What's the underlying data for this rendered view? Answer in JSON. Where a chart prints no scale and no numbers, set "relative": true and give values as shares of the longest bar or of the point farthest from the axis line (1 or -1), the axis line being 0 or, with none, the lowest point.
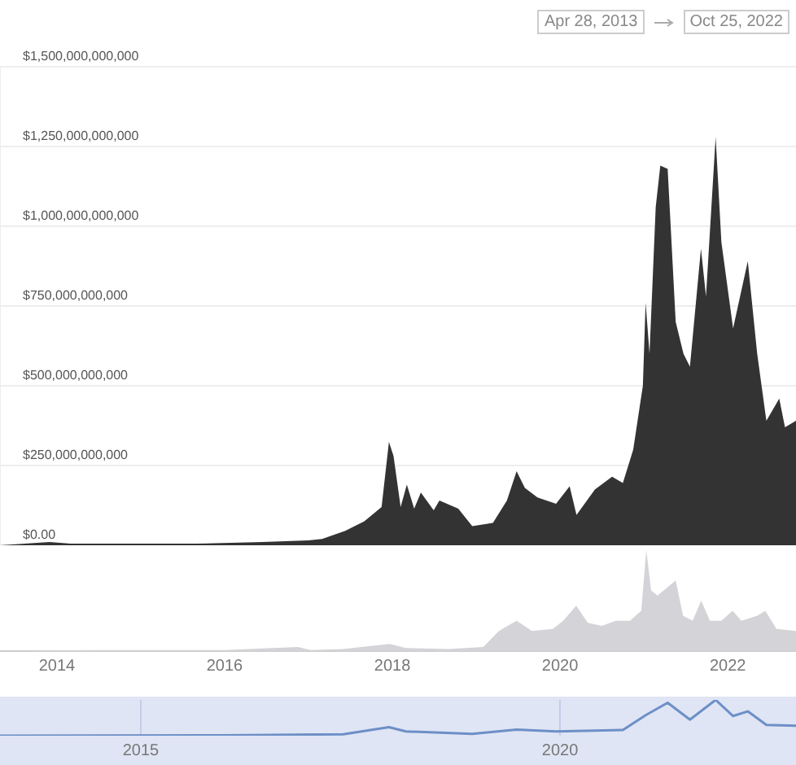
{
  "chart_data": [
    {
      "type": "area",
      "annotations": [
        "Apr 28, 2013",
        "Oct 25, 2022"
      ],
      "tick_labels": "y",
      "grid": "y",
      "legend": false,
      "xlim": [
        "2013-04-28",
        "2022-10-25"
      ],
      "ylim": [
        0,
        1500000000000
      ],
      "yticks": [
        {
          "value": 0,
          "label": "$0.00"
        },
        {
          "value": 250000000000,
          "label": "$250,000,000,000"
        },
        {
          "value": 500000000000,
          "label": "$500,000,000,000"
        },
        {
          "value": 750000000000,
          "label": "$750,000,000,000"
        },
        {
          "value": 1000000000000,
          "label": "$1,000,000,000,000"
        },
        {
          "value": 1250000000000,
          "label": "$1,250,000,000,000"
        },
        {
          "value": 1500000000000,
          "label": "$1,500,000,000,000"
        }
      ],
      "x": [
        "2013-04-28",
        "2013-11-30",
        "2014-03-01",
        "2014-09-01",
        "2015-01-15",
        "2015-09-01",
        "2016-06-15",
        "2016-12-31",
        "2017-03-01",
        "2017-06-10",
        "2017-09-01",
        "2017-11-15",
        "2017-12-17",
        "2018-01-06",
        "2018-02-06",
        "2018-03-05",
        "2018-04-06",
        "2018-05-05",
        "2018-06-30",
        "2018-07-25",
        "2018-10-15",
        "2018-12-15",
        "2019-03-15",
        "2019-05-15",
        "2019-06-26",
        "2019-08-01",
        "2019-09-25",
        "2019-12-15",
        "2020-02-12",
        "2020-03-13",
        "2020-06-01",
        "2020-08-15",
        "2020-10-01",
        "2020-11-15",
        "2020-12-27",
        "2021-01-08",
        "2021-01-25",
        "2021-02-21",
        "2021-03-13",
        "2021-04-14",
        "2021-05-19",
        "2021-06-22",
        "2021-07-20",
        "2021-09-06",
        "2021-09-28",
        "2021-11-09",
        "2021-12-04",
        "2022-01-24",
        "2022-03-29",
        "2022-05-09",
        "2022-06-18",
        "2022-08-13",
        "2022-09-07",
        "2022-10-25"
      ],
      "series": [
        {
          "color": "#333333",
          "values": [
            0,
            10000000000,
            5000000000,
            5000000000,
            5000000000,
            5000000000,
            10000000000,
            15000000000,
            20000000000,
            45000000000,
            75000000000,
            120000000000,
            324000000000,
            280000000000,
            120000000000,
            190000000000,
            115000000000,
            165000000000,
            110000000000,
            140000000000,
            115000000000,
            60000000000,
            70000000000,
            140000000000,
            232000000000,
            180000000000,
            150000000000,
            130000000000,
            185000000000,
            95000000000,
            175000000000,
            215000000000,
            195000000000,
            300000000000,
            500000000000,
            760000000000,
            600000000000,
            1060000000000,
            1190000000000,
            1180000000000,
            700000000000,
            600000000000,
            560000000000,
            930000000000,
            780000000000,
            1280000000000,
            950000000000,
            680000000000,
            890000000000,
            600000000000,
            390000000000,
            460000000000,
            370000000000,
            390000000000
          ]
        }
      ]
    },
    {
      "type": "area",
      "relative": true,
      "tick_labels": "x",
      "grid": false,
      "legend": false,
      "xlim": [
        "2013-04-28",
        "2022-10-25"
      ],
      "xticks": [
        "2014",
        "2016",
        "2018",
        "2020",
        "2022"
      ],
      "x": [
        "2013-04-28",
        "2014-06-01",
        "2016-01-01",
        "2016-11-15",
        "2017-01-10",
        "2017-06-01",
        "2017-12-20",
        "2018-03-01",
        "2018-09-01",
        "2019-02-01",
        "2019-04-10",
        "2019-06-26",
        "2019-09-01",
        "2019-12-01",
        "2020-01-15",
        "2020-03-12",
        "2020-05-01",
        "2020-07-01",
        "2020-09-01",
        "2020-11-01",
        "2020-12-20",
        "2021-01-11",
        "2021-02-01",
        "2021-03-01",
        "2021-05-19",
        "2021-06-20",
        "2021-08-01",
        "2021-09-07",
        "2021-10-15",
        "2021-12-04",
        "2022-01-22",
        "2022-03-01",
        "2022-05-10",
        "2022-06-13",
        "2022-08-01",
        "2022-10-25"
      ],
      "series": [
        {
          "color": "#d4d4d8",
          "values": [
            0,
            0.01,
            0.01,
            0.04,
            0.01,
            0.02,
            0.07,
            0.03,
            0.02,
            0.04,
            0.2,
            0.3,
            0.2,
            0.22,
            0.3,
            0.45,
            0.28,
            0.25,
            0.3,
            0.3,
            0.4,
            1.0,
            0.6,
            0.55,
            0.7,
            0.35,
            0.3,
            0.5,
            0.3,
            0.3,
            0.4,
            0.3,
            0.35,
            0.4,
            0.22,
            0.2
          ]
        }
      ]
    },
    {
      "type": "line",
      "relative": true,
      "tick_labels": "x",
      "grid": "x",
      "legend": false,
      "xlim": [
        "2013-04-28",
        "2022-10-25"
      ],
      "xticks": [
        "2015",
        "2020"
      ],
      "x": [
        "2013-04-28",
        "2016-01-01",
        "2017-06-01",
        "2017-12-17",
        "2018-03-01",
        "2018-12-15",
        "2019-06-26",
        "2019-12-15",
        "2020-06-01",
        "2020-10-01",
        "2021-01-10",
        "2021-04-14",
        "2021-07-20",
        "2021-11-09",
        "2022-01-24",
        "2022-03-29",
        "2022-06-18",
        "2022-10-25"
      ],
      "series": [
        {
          "color": "#6d8fc7",
          "values": [
            0,
            0.01,
            0.04,
            0.24,
            0.12,
            0.05,
            0.17,
            0.12,
            0.14,
            0.16,
            0.58,
            0.92,
            0.45,
            1.0,
            0.55,
            0.68,
            0.3,
            0.28
          ]
        }
      ]
    }
  ]
}
